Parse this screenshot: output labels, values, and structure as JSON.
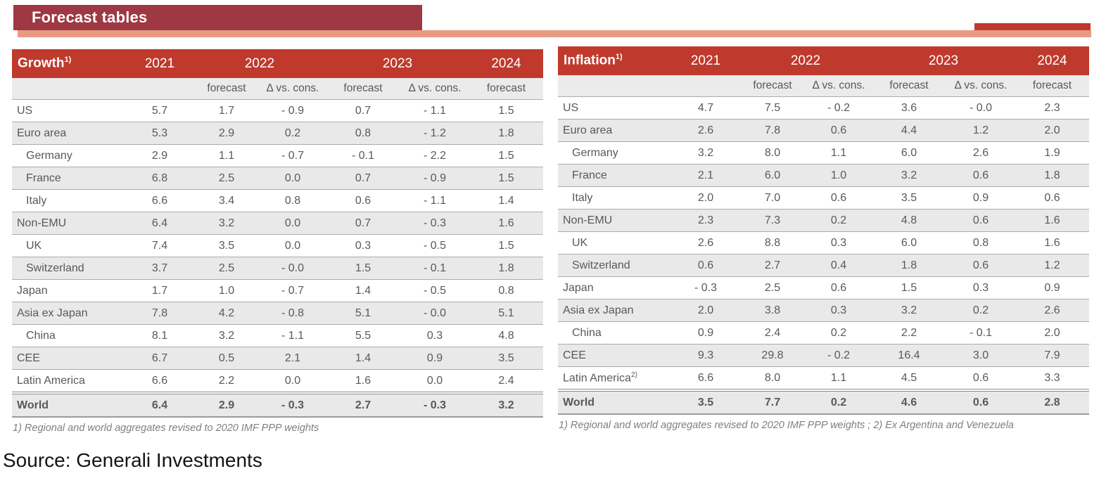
{
  "page": {
    "title": "Forecast tables",
    "source_text": "Source: Generali Investments"
  },
  "colors": {
    "banner_red": "#9e3842",
    "accent_salmon": "#e89b82",
    "table_header_red": "#bf3a2d",
    "row_shade_gray": "#e9e9e9",
    "text_gray": "#595959",
    "footnote_gray": "#7f7f7f"
  },
  "tables": [
    {
      "id": "growth",
      "title": "Growth",
      "title_sup": "1)",
      "years": [
        "2021",
        "2022",
        "2023",
        "2024"
      ],
      "subheaders": [
        "forecast",
        "Δ vs. cons.",
        "forecast",
        "Δ vs. cons.",
        "forecast"
      ],
      "footnote": "1) Regional and world aggregates revised to 2020 IMF PPP weights",
      "rows": [
        {
          "label": "US",
          "sup": "",
          "indent": false,
          "shaded": false,
          "total": false,
          "values": [
            "5.7",
            "1.7",
            "- 0.9",
            "0.7",
            "- 1.1",
            "1.5"
          ]
        },
        {
          "label": "Euro area",
          "sup": "",
          "indent": false,
          "shaded": true,
          "total": false,
          "values": [
            "5.3",
            "2.9",
            "0.2",
            "0.8",
            "- 1.2",
            "1.8"
          ]
        },
        {
          "label": "Germany",
          "sup": "",
          "indent": true,
          "shaded": false,
          "total": false,
          "values": [
            "2.9",
            "1.1",
            "- 0.7",
            "- 0.1",
            "- 2.2",
            "1.5"
          ]
        },
        {
          "label": "France",
          "sup": "",
          "indent": true,
          "shaded": true,
          "total": false,
          "values": [
            "6.8",
            "2.5",
            "0.0",
            "0.7",
            "- 0.9",
            "1.5"
          ]
        },
        {
          "label": "Italy",
          "sup": "",
          "indent": true,
          "shaded": false,
          "total": false,
          "values": [
            "6.6",
            "3.4",
            "0.8",
            "0.6",
            "- 1.1",
            "1.4"
          ]
        },
        {
          "label": "Non-EMU",
          "sup": "",
          "indent": false,
          "shaded": true,
          "total": false,
          "values": [
            "6.4",
            "3.2",
            "0.0",
            "0.7",
            "- 0.3",
            "1.6"
          ]
        },
        {
          "label": "UK",
          "sup": "",
          "indent": true,
          "shaded": false,
          "total": false,
          "values": [
            "7.4",
            "3.5",
            "0.0",
            "0.3",
            "- 0.5",
            "1.5"
          ]
        },
        {
          "label": "Switzerland",
          "sup": "",
          "indent": true,
          "shaded": true,
          "total": false,
          "values": [
            "3.7",
            "2.5",
            "- 0.0",
            "1.5",
            "- 0.1",
            "1.8"
          ]
        },
        {
          "label": "Japan",
          "sup": "",
          "indent": false,
          "shaded": false,
          "total": false,
          "values": [
            "1.7",
            "1.0",
            "- 0.7",
            "1.4",
            "- 0.5",
            "0.8"
          ]
        },
        {
          "label": "Asia ex Japan",
          "sup": "",
          "indent": false,
          "shaded": true,
          "total": false,
          "values": [
            "7.8",
            "4.2",
            "- 0.8",
            "5.1",
            "- 0.0",
            "5.1"
          ]
        },
        {
          "label": "China",
          "sup": "",
          "indent": true,
          "shaded": false,
          "total": false,
          "values": [
            "8.1",
            "3.2",
            "- 1.1",
            "5.5",
            "0.3",
            "4.8"
          ]
        },
        {
          "label": "CEE",
          "sup": "",
          "indent": false,
          "shaded": true,
          "total": false,
          "values": [
            "6.7",
            "0.5",
            "2.1",
            "1.4",
            "0.9",
            "3.5"
          ]
        },
        {
          "label": "Latin America",
          "sup": "",
          "indent": false,
          "shaded": false,
          "total": false,
          "values": [
            "6.6",
            "2.2",
            "0.0",
            "1.6",
            "0.0",
            "2.4"
          ]
        },
        {
          "label": "World",
          "sup": "",
          "indent": false,
          "shaded": true,
          "total": true,
          "values": [
            "6.4",
            "2.9",
            "- 0.3",
            "2.7",
            "- 0.3",
            "3.2"
          ]
        }
      ]
    },
    {
      "id": "inflation",
      "title": "Inflation",
      "title_sup": "1)",
      "years": [
        "2021",
        "2022",
        "2023",
        "2024"
      ],
      "subheaders": [
        "forecast",
        "Δ vs. cons.",
        "forecast",
        "Δ vs. cons.",
        "forecast"
      ],
      "footnote": "1) Regional and world aggregates revised to 2020 IMF PPP weights ; 2) Ex Argentina and Venezuela",
      "rows": [
        {
          "label": "US",
          "sup": "",
          "indent": false,
          "shaded": false,
          "total": false,
          "values": [
            "4.7",
            "7.5",
            "- 0.2",
            "3.6",
            "- 0.0",
            "2.3"
          ]
        },
        {
          "label": "Euro area",
          "sup": "",
          "indent": false,
          "shaded": true,
          "total": false,
          "values": [
            "2.6",
            "7.8",
            "0.6",
            "4.4",
            "1.2",
            "2.0"
          ]
        },
        {
          "label": "Germany",
          "sup": "",
          "indent": true,
          "shaded": false,
          "total": false,
          "values": [
            "3.2",
            "8.0",
            "1.1",
            "6.0",
            "2.6",
            "1.9"
          ]
        },
        {
          "label": "France",
          "sup": "",
          "indent": true,
          "shaded": true,
          "total": false,
          "values": [
            "2.1",
            "6.0",
            "1.0",
            "3.2",
            "0.6",
            "1.8"
          ]
        },
        {
          "label": "Italy",
          "sup": "",
          "indent": true,
          "shaded": false,
          "total": false,
          "values": [
            "2.0",
            "7.0",
            "0.6",
            "3.5",
            "0.9",
            "0.6"
          ]
        },
        {
          "label": "Non-EMU",
          "sup": "",
          "indent": false,
          "shaded": true,
          "total": false,
          "values": [
            "2.3",
            "7.3",
            "0.2",
            "4.8",
            "0.6",
            "1.6"
          ]
        },
        {
          "label": "UK",
          "sup": "",
          "indent": true,
          "shaded": false,
          "total": false,
          "values": [
            "2.6",
            "8.8",
            "0.3",
            "6.0",
            "0.8",
            "1.6"
          ]
        },
        {
          "label": "Switzerland",
          "sup": "",
          "indent": true,
          "shaded": true,
          "total": false,
          "values": [
            "0.6",
            "2.7",
            "0.4",
            "1.8",
            "0.6",
            "1.2"
          ]
        },
        {
          "label": "Japan",
          "sup": "",
          "indent": false,
          "shaded": false,
          "total": false,
          "values": [
            "- 0.3",
            "2.5",
            "0.6",
            "1.5",
            "0.3",
            "0.9"
          ]
        },
        {
          "label": "Asia ex Japan",
          "sup": "",
          "indent": false,
          "shaded": true,
          "total": false,
          "values": [
            "2.0",
            "3.8",
            "0.3",
            "3.2",
            "0.2",
            "2.6"
          ]
        },
        {
          "label": "China",
          "sup": "",
          "indent": true,
          "shaded": false,
          "total": false,
          "values": [
            "0.9",
            "2.4",
            "0.2",
            "2.2",
            "- 0.1",
            "2.0"
          ]
        },
        {
          "label": "CEE",
          "sup": "",
          "indent": false,
          "shaded": true,
          "total": false,
          "values": [
            "9.3",
            "29.8",
            "- 0.2",
            "16.4",
            "3.0",
            "7.9"
          ]
        },
        {
          "label": "Latin America",
          "sup": "2)",
          "indent": false,
          "shaded": false,
          "total": false,
          "values": [
            "6.6",
            "8.0",
            "1.1",
            "4.5",
            "0.6",
            "3.3"
          ]
        },
        {
          "label": "World",
          "sup": "",
          "indent": false,
          "shaded": true,
          "total": true,
          "values": [
            "3.5",
            "7.7",
            "0.2",
            "4.6",
            "0.6",
            "2.8"
          ]
        }
      ]
    }
  ]
}
